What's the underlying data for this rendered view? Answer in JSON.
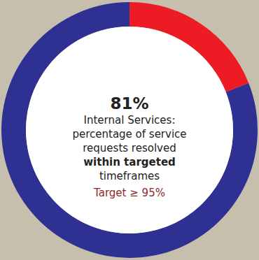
{
  "chart_data": {
    "type": "pie",
    "values": [
      81,
      19
    ],
    "value_labels": [
      "81%",
      null
    ],
    "colors": [
      "#2e3192",
      "#ed1c24"
    ],
    "subtitle": [
      "Internal Services:",
      "percentage of service",
      "requests resolved",
      "within targeted",
      "timeframes"
    ],
    "annotations": [
      "Target ≥ 95%"
    ],
    "data_labels": false
  }
}
